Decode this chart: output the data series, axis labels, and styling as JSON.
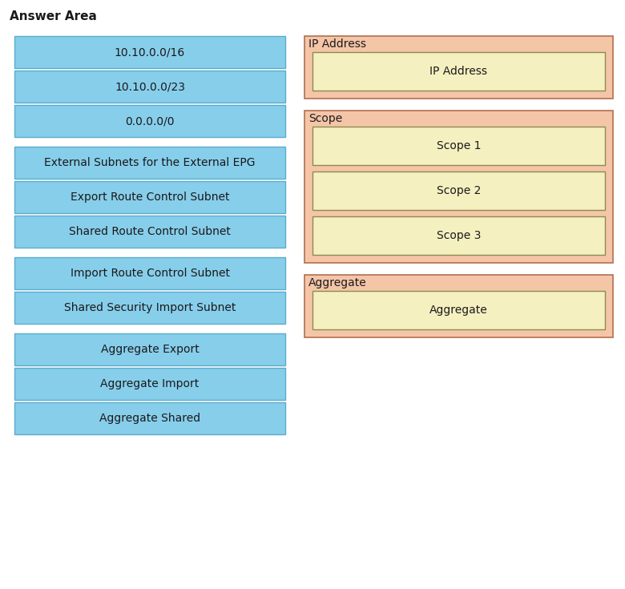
{
  "title": "Answer Area",
  "title_fontsize": 11,
  "title_fontweight": "bold",
  "left_items": [
    "10.10.0.0/16",
    "10.10.0.0/23",
    "0.0.0.0/0",
    "External Subnets for the External EPG",
    "Export Route Control Subnet",
    "Shared Route Control Subnet",
    "Import Route Control Subnet",
    "Shared Security Import Subnet",
    "Aggregate Export",
    "Aggregate Import",
    "Aggregate Shared"
  ],
  "left_box_color": "#87CEEB",
  "left_box_edgecolor": "#5aaccc",
  "right_groups": [
    {
      "label": "IP Address",
      "outer_color": "#F5C5A8",
      "outer_edgecolor": "#b07050",
      "inner_items": [
        "IP Address"
      ],
      "inner_color": "#F5F0C0",
      "inner_edgecolor": "#8B8B50"
    },
    {
      "label": "Scope",
      "outer_color": "#F5C5A8",
      "outer_edgecolor": "#b07050",
      "inner_items": [
        "Scope 1",
        "Scope 2",
        "Scope 3"
      ],
      "inner_color": "#F5F0C0",
      "inner_edgecolor": "#8B8B50"
    },
    {
      "label": "Aggregate",
      "outer_color": "#F5C5A8",
      "outer_edgecolor": "#b07050",
      "inner_items": [
        "Aggregate"
      ],
      "inner_color": "#F5F0C0",
      "inner_edgecolor": "#8B8B50"
    }
  ],
  "font_color": "#1a1a1a",
  "font_size": 10,
  "background_color": "#ffffff",
  "fig_width": 7.8,
  "fig_height": 7.35,
  "dpi": 100
}
